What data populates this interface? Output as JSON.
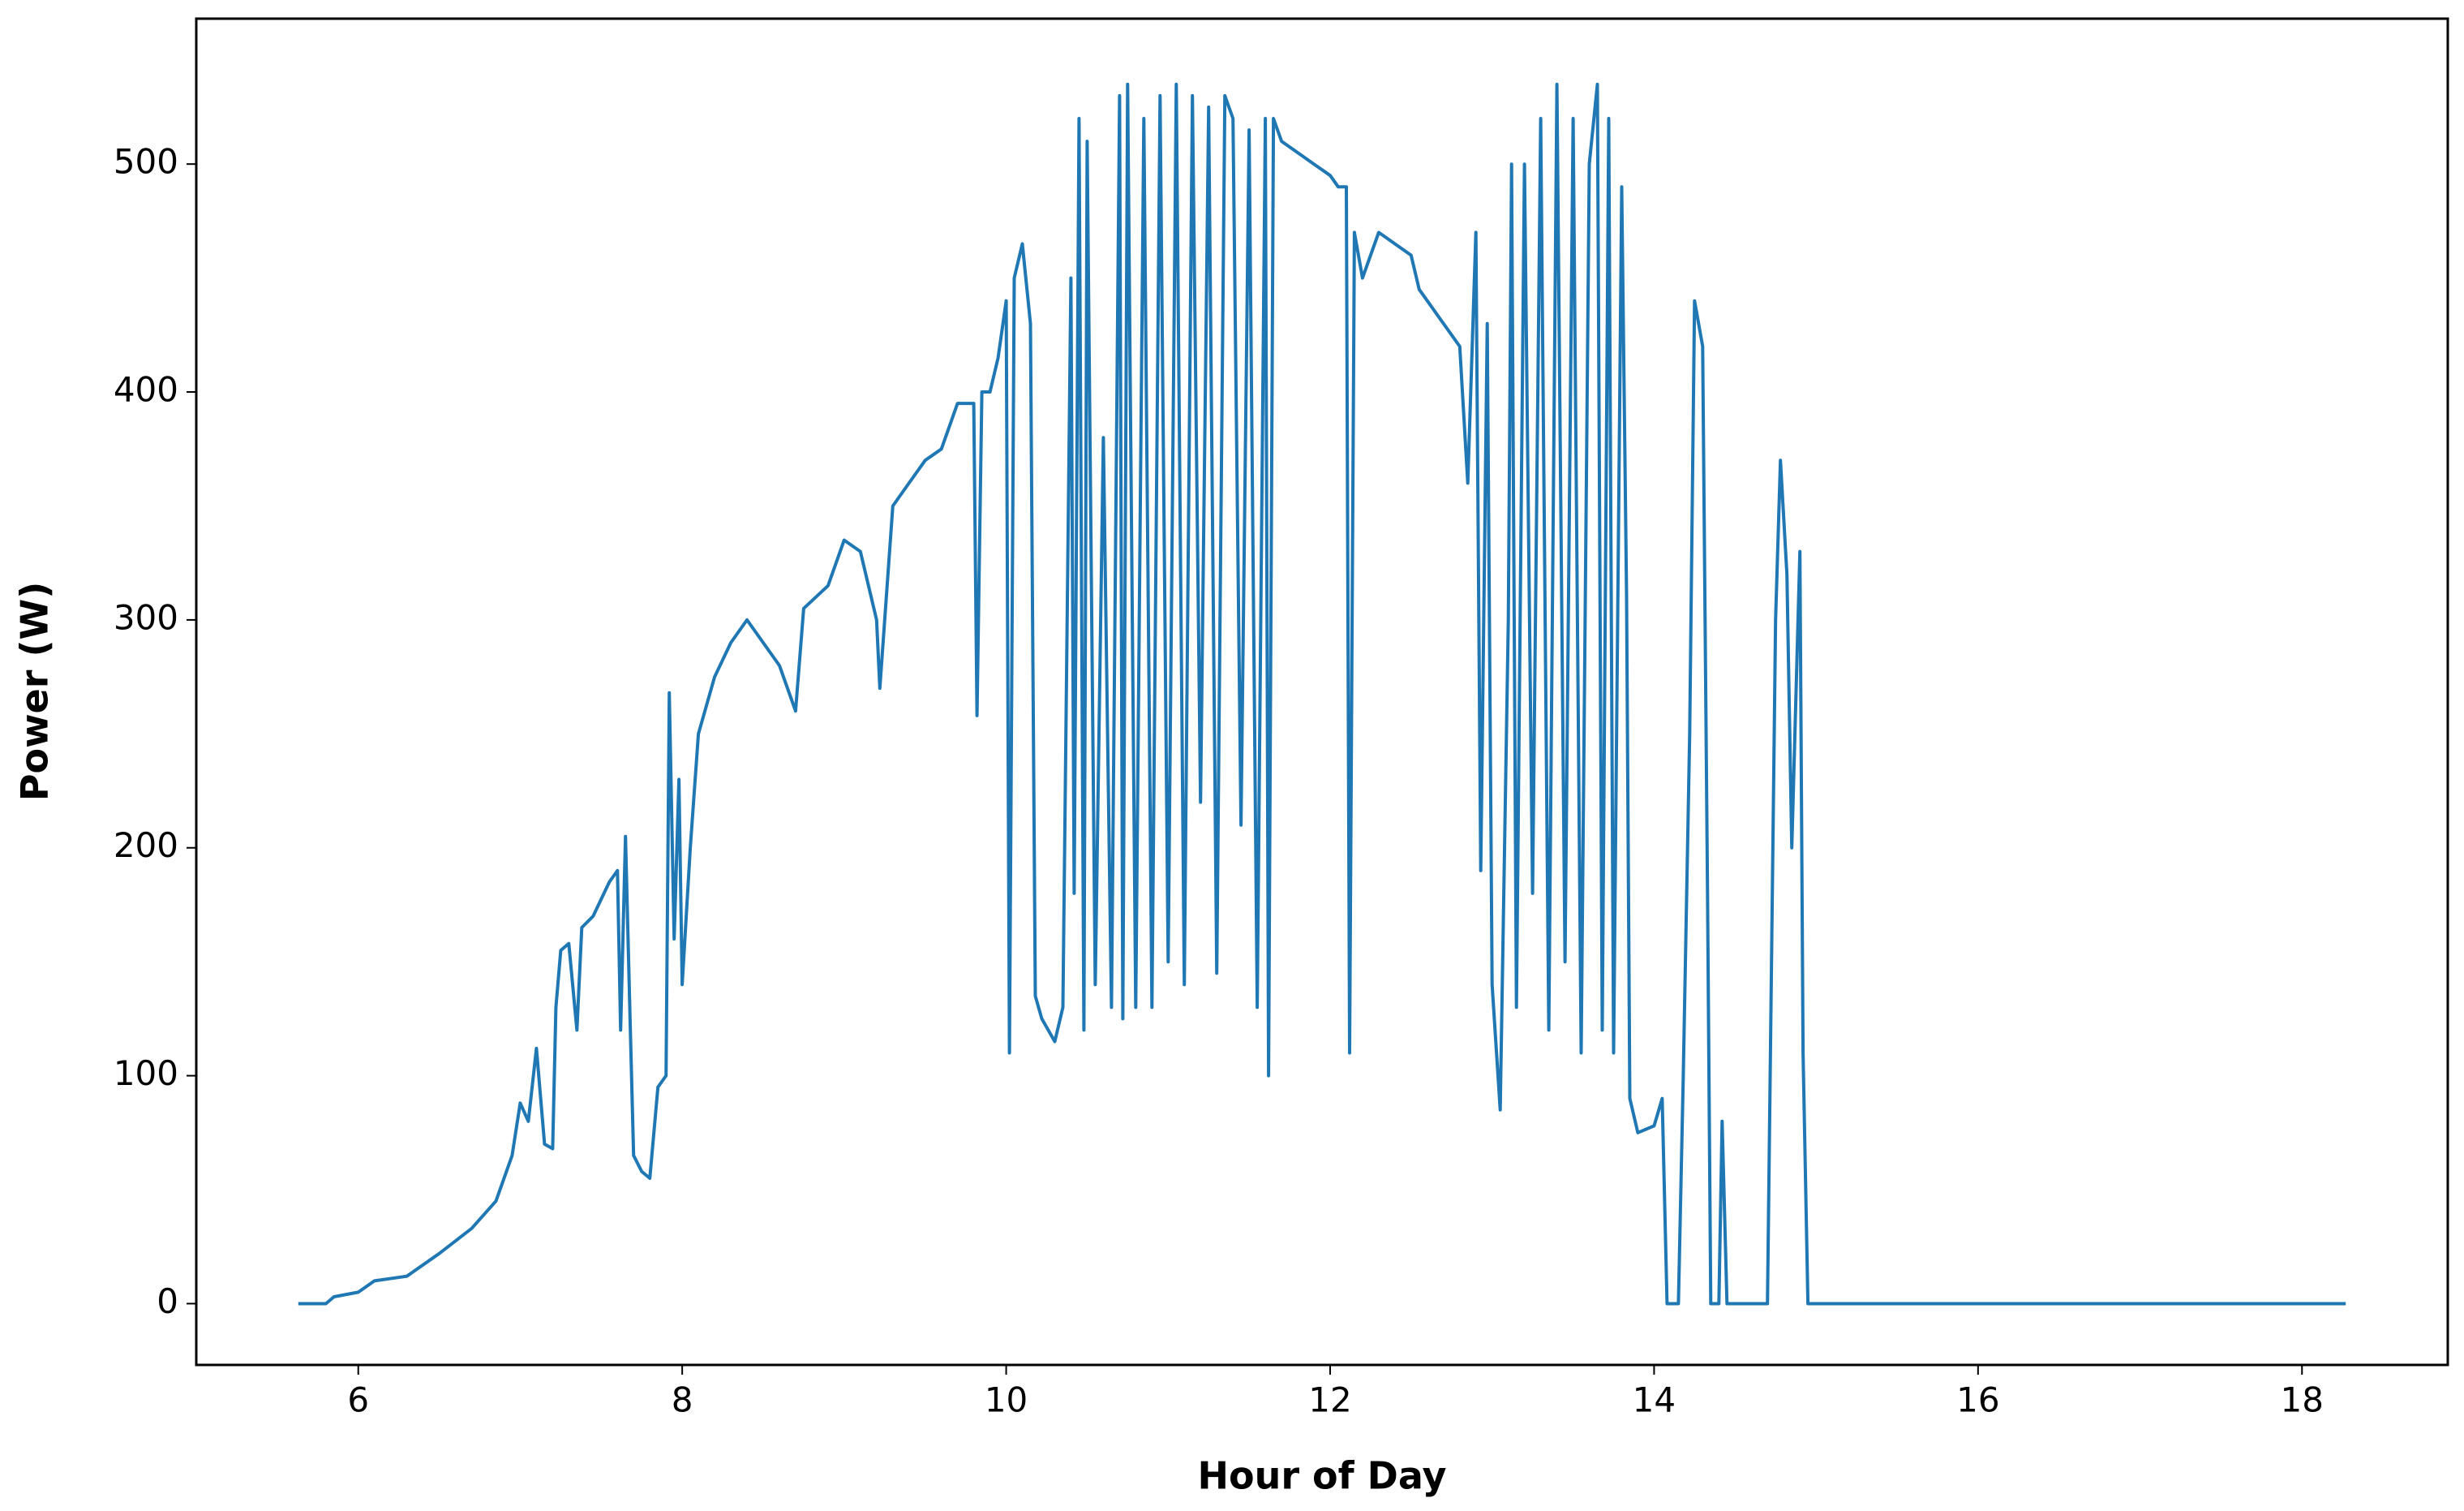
{
  "chart_data": {
    "type": "line",
    "x_label": "Hour of Day",
    "y_label": "Power (W)",
    "xlim": [
      5.0,
      18.9
    ],
    "ylim": [
      -26.9,
      563.8
    ],
    "xticks": [
      6,
      8,
      10,
      12,
      14,
      16,
      18
    ],
    "yticks": [
      0,
      100,
      200,
      300,
      400,
      500
    ],
    "grid": false,
    "series": [
      {
        "color": "#1f77b4",
        "x": [
          5.63,
          5.8,
          5.85,
          6.0,
          6.1,
          6.3,
          6.5,
          6.7,
          6.85,
          6.95,
          7.0,
          7.05,
          7.1,
          7.15,
          7.2,
          7.22,
          7.25,
          7.3,
          7.35,
          7.38,
          7.45,
          7.55,
          7.6,
          7.62,
          7.65,
          7.68,
          7.7,
          7.75,
          7.8,
          7.85,
          7.9,
          7.92,
          7.95,
          7.98,
          8.0,
          8.05,
          8.1,
          8.2,
          8.3,
          8.4,
          8.5,
          8.6,
          8.7,
          8.75,
          8.9,
          9.0,
          9.1,
          9.2,
          9.22,
          9.3,
          9.4,
          9.5,
          9.6,
          9.7,
          9.8,
          9.82,
          9.85,
          9.9,
          9.95,
          10.0,
          10.02,
          10.05,
          10.1,
          10.15,
          10.18,
          10.22,
          10.3,
          10.35,
          10.4,
          10.42,
          10.45,
          10.48,
          10.5,
          10.55,
          10.6,
          10.65,
          10.7,
          10.72,
          10.75,
          10.8,
          10.85,
          10.9,
          10.95,
          11.0,
          11.05,
          11.1,
          11.15,
          11.2,
          11.25,
          11.3,
          11.35,
          11.4,
          11.45,
          11.5,
          11.55,
          11.6,
          11.62,
          11.65,
          11.7,
          11.8,
          11.9,
          12.0,
          12.05,
          12.1,
          12.12,
          12.15,
          12.2,
          12.3,
          12.4,
          12.5,
          12.55,
          12.6,
          12.7,
          12.8,
          12.85,
          12.9,
          12.93,
          12.97,
          13.0,
          13.05,
          13.1,
          13.12,
          13.15,
          13.2,
          13.25,
          13.3,
          13.35,
          13.4,
          13.45,
          13.5,
          13.55,
          13.6,
          13.65,
          13.68,
          13.72,
          13.75,
          13.8,
          13.83,
          13.85,
          13.9,
          14.0,
          14.05,
          14.08,
          14.15,
          14.18,
          14.22,
          14.25,
          14.3,
          14.33,
          14.35,
          14.4,
          14.42,
          14.45,
          14.7,
          14.72,
          14.75,
          14.78,
          14.82,
          14.85,
          14.9,
          14.92,
          14.95,
          15.2,
          16.0,
          17.0,
          18.27
        ],
        "values": [
          0,
          0,
          3,
          5,
          10,
          12,
          22,
          33,
          45,
          65,
          88,
          80,
          112,
          70,
          68,
          130,
          155,
          158,
          120,
          165,
          170,
          185,
          190,
          120,
          205,
          120,
          65,
          58,
          55,
          95,
          100,
          268,
          160,
          230,
          140,
          200,
          250,
          275,
          290,
          300,
          290,
          280,
          260,
          305,
          315,
          335,
          330,
          300,
          270,
          350,
          360,
          370,
          375,
          395,
          395,
          258,
          400,
          400,
          415,
          440,
          110,
          450,
          465,
          430,
          135,
          125,
          115,
          130,
          450,
          180,
          520,
          120,
          510,
          140,
          380,
          130,
          530,
          125,
          535,
          130,
          520,
          130,
          530,
          150,
          535,
          140,
          530,
          220,
          525,
          145,
          530,
          520,
          210,
          515,
          130,
          520,
          100,
          520,
          510,
          505,
          500,
          495,
          490,
          490,
          110,
          470,
          450,
          470,
          465,
          460,
          445,
          440,
          430,
          420,
          360,
          470,
          190,
          430,
          140,
          85,
          300,
          500,
          130,
          500,
          180,
          520,
          120,
          535,
          150,
          520,
          110,
          500,
          535,
          120,
          520,
          110,
          490,
          310,
          90,
          75,
          78,
          90,
          0,
          0,
          100,
          250,
          440,
          420,
          180,
          0,
          0,
          80,
          0,
          0,
          120,
          300,
          370,
          320,
          200,
          330,
          110,
          0,
          0,
          0,
          0,
          0
        ]
      }
    ]
  }
}
